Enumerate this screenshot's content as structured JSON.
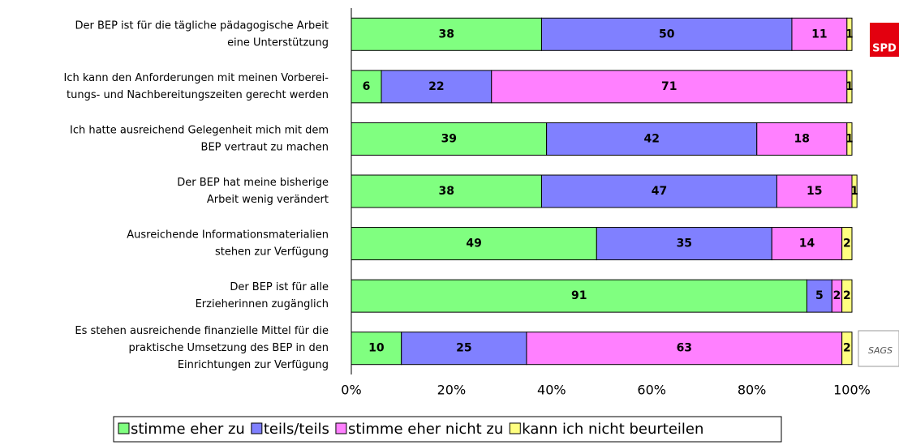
{
  "chart_data": {
    "type": "stacked_barh",
    "categories": [
      [
        "Der BEP ist für die tägliche pädagogische Arbeit",
        "eine Unterstützung"
      ],
      [
        "Ich kann den Anforderungen mit meinen Vorberei-",
        "tungs- und  Nachbereitungszeiten gerecht werden"
      ],
      [
        "Ich hatte ausreichend Gelegenheit mich mit dem",
        "BEP vertraut zu machen"
      ],
      [
        "Der BEP hat meine bisherige",
        "Arbeit wenig verändert"
      ],
      [
        "Ausreichende Informationsmaterialien",
        "stehen zur Verfügung"
      ],
      [
        "Der BEP ist für alle",
        "Erzieherinnen zugänglich"
      ],
      [
        "Es stehen ausreichende finanzielle Mittel für die",
        "praktische Umsetzung des BEP in den",
        "Einrichtungen zur Verfügung"
      ]
    ],
    "series": [
      {
        "name": "stimme eher zu",
        "color": "#80ff80",
        "values": [
          38,
          6,
          39,
          38,
          49,
          91,
          10
        ]
      },
      {
        "name": "teils/teils",
        "color": "#8080ff",
        "values": [
          50,
          22,
          42,
          47,
          35,
          5,
          25
        ]
      },
      {
        "name": "stimme eher nicht zu",
        "color": "#ff80ff",
        "values": [
          11,
          71,
          18,
          15,
          14,
          2,
          63
        ]
      },
      {
        "name": "kann ich nicht beurteilen",
        "color": "#ffff80",
        "values": [
          1,
          1,
          1,
          1,
          2,
          2,
          2
        ]
      }
    ],
    "xlim": [
      0,
      100
    ],
    "xticks": [
      {
        "value": 0,
        "label": "0%"
      },
      {
        "value": 20,
        "label": "20%"
      },
      {
        "value": 40,
        "label": "40%"
      },
      {
        "value": 60,
        "label": "60%"
      },
      {
        "value": 80,
        "label": "80%"
      },
      {
        "value": 100,
        "label": "100%"
      }
    ],
    "grid": true,
    "legend": "bottom",
    "logos": {
      "spd": "SPD",
      "sags": "SAGS"
    }
  }
}
